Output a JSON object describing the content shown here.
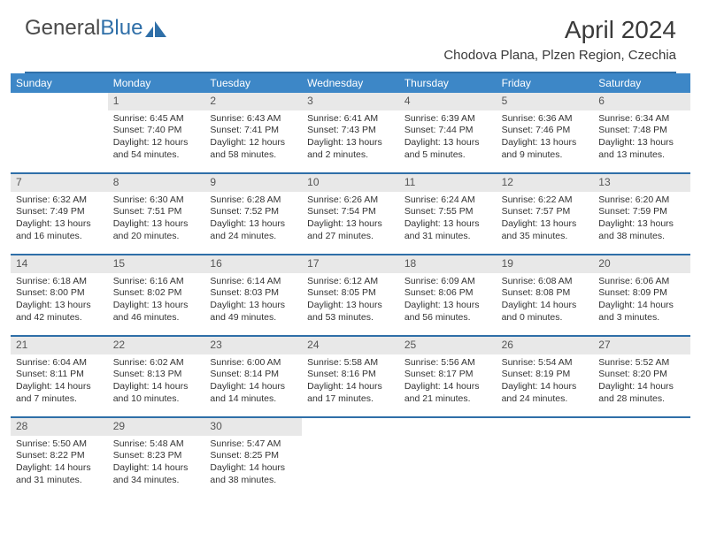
{
  "logo": {
    "text1": "General",
    "text2": "Blue"
  },
  "title": "April 2024",
  "location": "Chodova Plana, Plzen Region, Czechia",
  "colors": {
    "accent": "#2f6fa8",
    "header_bg": "#3d87c7",
    "daynum_bg": "#e8e8e8",
    "text": "#333333"
  },
  "days_of_week": [
    "Sunday",
    "Monday",
    "Tuesday",
    "Wednesday",
    "Thursday",
    "Friday",
    "Saturday"
  ],
  "weeks": [
    [
      {
        "n": "",
        "sunrise": "",
        "sunset": "",
        "daylight": ""
      },
      {
        "n": "1",
        "sunrise": "Sunrise: 6:45 AM",
        "sunset": "Sunset: 7:40 PM",
        "daylight": "Daylight: 12 hours and 54 minutes."
      },
      {
        "n": "2",
        "sunrise": "Sunrise: 6:43 AM",
        "sunset": "Sunset: 7:41 PM",
        "daylight": "Daylight: 12 hours and 58 minutes."
      },
      {
        "n": "3",
        "sunrise": "Sunrise: 6:41 AM",
        "sunset": "Sunset: 7:43 PM",
        "daylight": "Daylight: 13 hours and 2 minutes."
      },
      {
        "n": "4",
        "sunrise": "Sunrise: 6:39 AM",
        "sunset": "Sunset: 7:44 PM",
        "daylight": "Daylight: 13 hours and 5 minutes."
      },
      {
        "n": "5",
        "sunrise": "Sunrise: 6:36 AM",
        "sunset": "Sunset: 7:46 PM",
        "daylight": "Daylight: 13 hours and 9 minutes."
      },
      {
        "n": "6",
        "sunrise": "Sunrise: 6:34 AM",
        "sunset": "Sunset: 7:48 PM",
        "daylight": "Daylight: 13 hours and 13 minutes."
      }
    ],
    [
      {
        "n": "7",
        "sunrise": "Sunrise: 6:32 AM",
        "sunset": "Sunset: 7:49 PM",
        "daylight": "Daylight: 13 hours and 16 minutes."
      },
      {
        "n": "8",
        "sunrise": "Sunrise: 6:30 AM",
        "sunset": "Sunset: 7:51 PM",
        "daylight": "Daylight: 13 hours and 20 minutes."
      },
      {
        "n": "9",
        "sunrise": "Sunrise: 6:28 AM",
        "sunset": "Sunset: 7:52 PM",
        "daylight": "Daylight: 13 hours and 24 minutes."
      },
      {
        "n": "10",
        "sunrise": "Sunrise: 6:26 AM",
        "sunset": "Sunset: 7:54 PM",
        "daylight": "Daylight: 13 hours and 27 minutes."
      },
      {
        "n": "11",
        "sunrise": "Sunrise: 6:24 AM",
        "sunset": "Sunset: 7:55 PM",
        "daylight": "Daylight: 13 hours and 31 minutes."
      },
      {
        "n": "12",
        "sunrise": "Sunrise: 6:22 AM",
        "sunset": "Sunset: 7:57 PM",
        "daylight": "Daylight: 13 hours and 35 minutes."
      },
      {
        "n": "13",
        "sunrise": "Sunrise: 6:20 AM",
        "sunset": "Sunset: 7:59 PM",
        "daylight": "Daylight: 13 hours and 38 minutes."
      }
    ],
    [
      {
        "n": "14",
        "sunrise": "Sunrise: 6:18 AM",
        "sunset": "Sunset: 8:00 PM",
        "daylight": "Daylight: 13 hours and 42 minutes."
      },
      {
        "n": "15",
        "sunrise": "Sunrise: 6:16 AM",
        "sunset": "Sunset: 8:02 PM",
        "daylight": "Daylight: 13 hours and 46 minutes."
      },
      {
        "n": "16",
        "sunrise": "Sunrise: 6:14 AM",
        "sunset": "Sunset: 8:03 PM",
        "daylight": "Daylight: 13 hours and 49 minutes."
      },
      {
        "n": "17",
        "sunrise": "Sunrise: 6:12 AM",
        "sunset": "Sunset: 8:05 PM",
        "daylight": "Daylight: 13 hours and 53 minutes."
      },
      {
        "n": "18",
        "sunrise": "Sunrise: 6:09 AM",
        "sunset": "Sunset: 8:06 PM",
        "daylight": "Daylight: 13 hours and 56 minutes."
      },
      {
        "n": "19",
        "sunrise": "Sunrise: 6:08 AM",
        "sunset": "Sunset: 8:08 PM",
        "daylight": "Daylight: 14 hours and 0 minutes."
      },
      {
        "n": "20",
        "sunrise": "Sunrise: 6:06 AM",
        "sunset": "Sunset: 8:09 PM",
        "daylight": "Daylight: 14 hours and 3 minutes."
      }
    ],
    [
      {
        "n": "21",
        "sunrise": "Sunrise: 6:04 AM",
        "sunset": "Sunset: 8:11 PM",
        "daylight": "Daylight: 14 hours and 7 minutes."
      },
      {
        "n": "22",
        "sunrise": "Sunrise: 6:02 AM",
        "sunset": "Sunset: 8:13 PM",
        "daylight": "Daylight: 14 hours and 10 minutes."
      },
      {
        "n": "23",
        "sunrise": "Sunrise: 6:00 AM",
        "sunset": "Sunset: 8:14 PM",
        "daylight": "Daylight: 14 hours and 14 minutes."
      },
      {
        "n": "24",
        "sunrise": "Sunrise: 5:58 AM",
        "sunset": "Sunset: 8:16 PM",
        "daylight": "Daylight: 14 hours and 17 minutes."
      },
      {
        "n": "25",
        "sunrise": "Sunrise: 5:56 AM",
        "sunset": "Sunset: 8:17 PM",
        "daylight": "Daylight: 14 hours and 21 minutes."
      },
      {
        "n": "26",
        "sunrise": "Sunrise: 5:54 AM",
        "sunset": "Sunset: 8:19 PM",
        "daylight": "Daylight: 14 hours and 24 minutes."
      },
      {
        "n": "27",
        "sunrise": "Sunrise: 5:52 AM",
        "sunset": "Sunset: 8:20 PM",
        "daylight": "Daylight: 14 hours and 28 minutes."
      }
    ],
    [
      {
        "n": "28",
        "sunrise": "Sunrise: 5:50 AM",
        "sunset": "Sunset: 8:22 PM",
        "daylight": "Daylight: 14 hours and 31 minutes."
      },
      {
        "n": "29",
        "sunrise": "Sunrise: 5:48 AM",
        "sunset": "Sunset: 8:23 PM",
        "daylight": "Daylight: 14 hours and 34 minutes."
      },
      {
        "n": "30",
        "sunrise": "Sunrise: 5:47 AM",
        "sunset": "Sunset: 8:25 PM",
        "daylight": "Daylight: 14 hours and 38 minutes."
      },
      {
        "n": "",
        "sunrise": "",
        "sunset": "",
        "daylight": ""
      },
      {
        "n": "",
        "sunrise": "",
        "sunset": "",
        "daylight": ""
      },
      {
        "n": "",
        "sunrise": "",
        "sunset": "",
        "daylight": ""
      },
      {
        "n": "",
        "sunrise": "",
        "sunset": "",
        "daylight": ""
      }
    ]
  ]
}
